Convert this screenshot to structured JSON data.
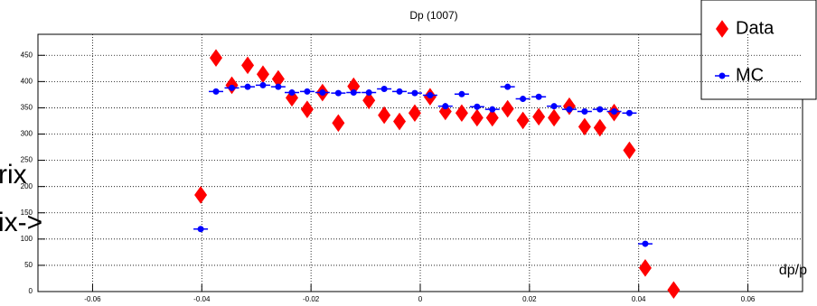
{
  "chart_data": {
    "type": "scatter",
    "title": "Dp  (1007)",
    "x_label": "dp/p",
    "annotations": [
      "rix",
      "ix->"
    ],
    "x": [
      -0.0402,
      -0.0374,
      -0.0345,
      -0.0316,
      -0.0288,
      -0.026,
      -0.0235,
      -0.0207,
      -0.0179,
      -0.015,
      -0.0122,
      -0.0094,
      -0.0066,
      -0.0038,
      -0.001,
      0.0018,
      0.0046,
      0.0076,
      0.0104,
      0.0132,
      0.016,
      0.0188,
      0.0217,
      0.0245,
      0.0273,
      0.0301,
      0.0329,
      0.0355,
      0.0383,
      0.0412,
      0.0464
    ],
    "series": [
      {
        "name": "Data",
        "color": "#ff0000",
        "marker": "diamond",
        "values": [
          184,
          445,
          393,
          431,
          414,
          405,
          369,
          347,
          379,
          321,
          391,
          364,
          336,
          324,
          340,
          371,
          343,
          340,
          331,
          331,
          348,
          326,
          333,
          331,
          353,
          314,
          312,
          341,
          269,
          45,
          3
        ]
      },
      {
        "name": "MC",
        "color": "#0000ff",
        "marker": "dot",
        "values": [
          119,
          381,
          388,
          390,
          393,
          390,
          379,
          381,
          379,
          378,
          379,
          379,
          386,
          381,
          378,
          374,
          353,
          376,
          352,
          347,
          390,
          367,
          371,
          353,
          347,
          343,
          347,
          343,
          340,
          91,
          null
        ]
      }
    ],
    "xlim": [
      -0.07,
      0.07
    ],
    "ylim": [
      0,
      490
    ],
    "xticks": [
      -0.06,
      -0.04,
      -0.02,
      0,
      0.02,
      0.04,
      0.06
    ],
    "yticks": [
      0,
      50,
      100,
      150,
      200,
      250,
      300,
      350,
      400,
      450
    ],
    "grid": true
  }
}
